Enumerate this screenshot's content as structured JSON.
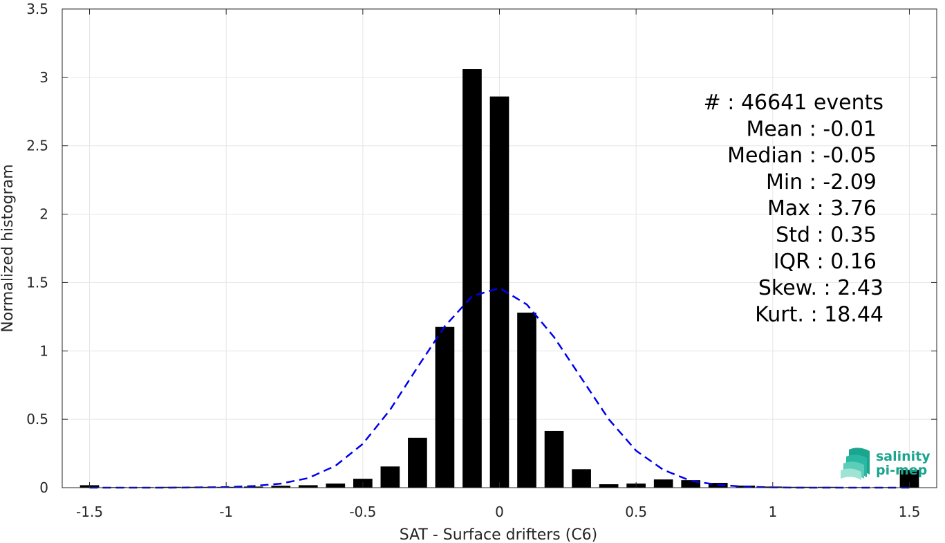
{
  "chart_data": {
    "type": "bar",
    "xlabel": "SAT - Surface drifters (C6)",
    "ylabel": "Normalized histogram",
    "xlim": [
      -1.6,
      1.6
    ],
    "ylim": [
      0,
      3.5
    ],
    "grid": true,
    "bar_width": 0.07,
    "x_ticks": [
      -1.5,
      -1,
      -0.5,
      0,
      0.5,
      1,
      1.5
    ],
    "x_tick_labels": [
      "-1.5",
      "-1",
      "-0.5",
      "0",
      "0.5",
      "1",
      "1.5"
    ],
    "y_ticks": [
      0,
      0.5,
      1,
      1.5,
      2,
      2.5,
      3,
      3.5
    ],
    "y_tick_labels": [
      "0",
      "0.5",
      "1",
      "1.5",
      "2",
      "2.5",
      "3",
      "3.5"
    ],
    "bars": {
      "x": [
        -1.5,
        -1.4,
        -1.3,
        -1.2,
        -1.1,
        -1.0,
        -0.9,
        -0.8,
        -0.7,
        -0.6,
        -0.5,
        -0.4,
        -0.3,
        -0.2,
        -0.1,
        0.0,
        0.1,
        0.2,
        0.3,
        0.4,
        0.5,
        0.6,
        0.7,
        0.8,
        0.9,
        1.0,
        1.1,
        1.2,
        1.3,
        1.4,
        1.5
      ],
      "values": [
        0.018,
        0.004,
        0.004,
        0.006,
        0.006,
        0.006,
        0.008,
        0.014,
        0.018,
        0.03,
        0.065,
        0.155,
        0.365,
        1.175,
        3.06,
        2.86,
        1.28,
        0.415,
        0.135,
        0.025,
        0.03,
        0.06,
        0.055,
        0.035,
        0.015,
        0.008,
        0.006,
        0.006,
        0.004,
        0.004,
        0.13
      ]
    },
    "fit_curve": {
      "name": "Gaussian fit",
      "style": "dashed",
      "color": "#0000ee",
      "x": [
        -1.5,
        -1.4,
        -1.3,
        -1.2,
        -1.1,
        -1.0,
        -0.9,
        -0.8,
        -0.7,
        -0.6,
        -0.5,
        -0.4,
        -0.3,
        -0.2,
        -0.1,
        0.0,
        0.1,
        0.2,
        0.3,
        0.4,
        0.5,
        0.6,
        0.7,
        0.8,
        0.9,
        1.0,
        1.1,
        1.2,
        1.3,
        1.4,
        1.5
      ],
      "y": [
        0.0,
        0.0,
        0.0,
        0.0,
        0.002,
        0.004,
        0.012,
        0.03,
        0.07,
        0.16,
        0.32,
        0.57,
        0.88,
        1.18,
        1.4,
        1.46,
        1.34,
        1.1,
        0.8,
        0.5,
        0.27,
        0.13,
        0.05,
        0.02,
        0.007,
        0.002,
        0.0,
        0.0,
        0.0,
        0.0,
        0.0
      ]
    },
    "stats": [
      "#  : 46641 events",
      "Mean : -0.01",
      "Median : -0.05",
      "Min : -2.09",
      "Max : 3.76",
      "Std : 0.35",
      "IQR : 0.16",
      "Skew. : 2.43",
      "Kurt. : 18.44"
    ]
  },
  "logo": {
    "line1": "salinity",
    "line2": "pi-mep",
    "colors": [
      "#1aa58f",
      "#2bb8a2",
      "#5ccdb8",
      "#9fe3d4"
    ]
  }
}
